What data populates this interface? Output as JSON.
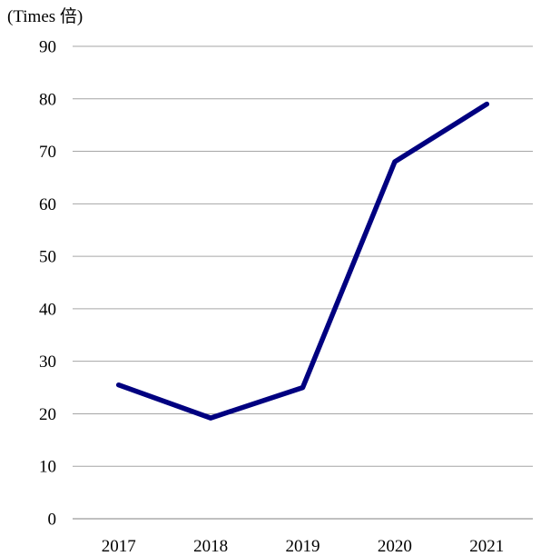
{
  "chart_data": {
    "type": "line",
    "title": "",
    "xlabel": "",
    "ylabel": "(Times 倍)",
    "categories": [
      "2017",
      "2018",
      "2019",
      "2020",
      "2021"
    ],
    "series": [
      {
        "values": [
          25.5,
          19.2,
          25,
          68,
          79
        ]
      }
    ],
    "ylim": [
      0,
      90
    ],
    "yticks": [
      0,
      10,
      20,
      30,
      40,
      50,
      60,
      70,
      80,
      90
    ],
    "grid": true,
    "legend": "none",
    "colors": {
      "line": "#000080",
      "grid": "#a6a6a6",
      "axis": "#808080",
      "text": "#000000"
    }
  }
}
